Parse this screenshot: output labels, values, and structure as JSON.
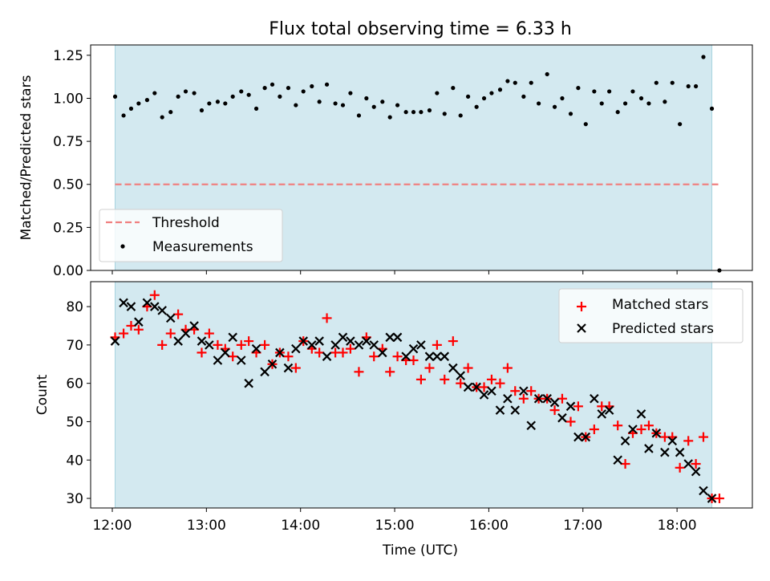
{
  "title": "Flux total observing time = 6.33 h",
  "colors": {
    "shade": "#d3e9f0",
    "shade_edge": "#a8d4e0",
    "threshold": "#f08080",
    "measurement": "#000000",
    "matched": "#ff0000",
    "predicted": "#000000"
  },
  "chart_data": [
    {
      "type": "scatter",
      "ylabel": "Matched/Predicted stars",
      "xlim": [
        11.77,
        18.8
      ],
      "ylim": [
        0,
        1.31
      ],
      "yticks": [
        "0.00",
        "0.25",
        "0.50",
        "0.75",
        "1.00",
        "1.25"
      ],
      "ytick_values": [
        0,
        0.25,
        0.5,
        0.75,
        1.0,
        1.25
      ],
      "shaded_range": [
        12.03,
        18.37
      ],
      "legend": {
        "position": "lower-left",
        "entries": [
          "Threshold",
          "Measurements"
        ]
      },
      "threshold": {
        "name": "Threshold",
        "value": 0.5,
        "x_range": [
          12.03,
          18.47
        ]
      },
      "series": [
        {
          "name": "Measurements",
          "x": [
            12.03,
            12.12,
            12.2,
            12.28,
            12.37,
            12.45,
            12.53,
            12.62,
            12.7,
            12.78,
            12.87,
            12.95,
            13.03,
            13.12,
            13.2,
            13.28,
            13.37,
            13.45,
            13.53,
            13.62,
            13.7,
            13.78,
            13.87,
            13.95,
            14.03,
            14.12,
            14.2,
            14.28,
            14.37,
            14.45,
            14.53,
            14.62,
            14.7,
            14.78,
            14.87,
            14.95,
            15.03,
            15.12,
            15.2,
            15.28,
            15.37,
            15.45,
            15.53,
            15.62,
            15.7,
            15.78,
            15.87,
            15.95,
            16.03,
            16.12,
            16.2,
            16.28,
            16.37,
            16.45,
            16.53,
            16.62,
            16.7,
            16.78,
            16.87,
            16.95,
            17.03,
            17.12,
            17.2,
            17.28,
            17.37,
            17.45,
            17.53,
            17.62,
            17.7,
            17.78,
            17.87,
            17.95,
            18.03,
            18.12,
            18.2,
            18.28,
            18.37,
            18.45
          ],
          "y": [
            1.01,
            0.9,
            0.94,
            0.97,
            0.99,
            1.03,
            0.89,
            0.92,
            1.01,
            1.04,
            1.03,
            0.93,
            0.97,
            0.98,
            0.97,
            1.01,
            1.04,
            1.02,
            0.94,
            1.06,
            1.08,
            1.01,
            1.06,
            0.96,
            1.04,
            1.07,
            0.98,
            1.08,
            0.97,
            0.96,
            1.03,
            0.9,
            1.0,
            0.95,
            0.98,
            0.89,
            0.96,
            0.92,
            0.92,
            0.92,
            0.93,
            1.03,
            0.91,
            1.06,
            0.9,
            1.01,
            0.95,
            1.0,
            1.03,
            1.05,
            1.1,
            1.09,
            1.01,
            1.09,
            0.97,
            1.14,
            0.95,
            1.0,
            0.91,
            1.06,
            0.85,
            1.04,
            0.97,
            1.04,
            0.92,
            0.97,
            1.04,
            1.0,
            0.97,
            1.09,
            0.98,
            1.09,
            0.85,
            1.07,
            1.07,
            1.24,
            0.94,
            0.0
          ]
        }
      ]
    },
    {
      "type": "scatter",
      "ylabel": "Count",
      "xlabel": "Time (UTC)",
      "xlim": [
        11.77,
        18.8
      ],
      "ylim": [
        27.5,
        86.5
      ],
      "yticks": [
        "30",
        "40",
        "50",
        "60",
        "70",
        "80"
      ],
      "ytick_values": [
        30,
        40,
        50,
        60,
        70,
        80
      ],
      "xticks": [
        "12:00",
        "13:00",
        "14:00",
        "15:00",
        "16:00",
        "17:00",
        "18:00"
      ],
      "xtick_values": [
        12,
        13,
        14,
        15,
        16,
        17,
        18
      ],
      "shaded_range": [
        12.03,
        18.37
      ],
      "legend": {
        "position": "top-right",
        "entries": [
          "Matched stars",
          "Predicted stars"
        ]
      },
      "series": [
        {
          "name": "Matched stars",
          "marker": "plus",
          "x": [
            12.03,
            12.12,
            12.2,
            12.28,
            12.37,
            12.45,
            12.53,
            12.62,
            12.7,
            12.78,
            12.87,
            12.95,
            13.03,
            13.12,
            13.2,
            13.28,
            13.37,
            13.45,
            13.53,
            13.62,
            13.7,
            13.78,
            13.87,
            13.95,
            14.03,
            14.12,
            14.2,
            14.28,
            14.37,
            14.45,
            14.53,
            14.62,
            14.7,
            14.78,
            14.87,
            14.95,
            15.03,
            15.12,
            15.2,
            15.28,
            15.37,
            15.45,
            15.53,
            15.62,
            15.7,
            15.78,
            15.87,
            15.95,
            16.03,
            16.12,
            16.2,
            16.28,
            16.37,
            16.45,
            16.53,
            16.62,
            16.7,
            16.78,
            16.87,
            16.95,
            17.03,
            17.12,
            17.2,
            17.28,
            17.37,
            17.45,
            17.53,
            17.62,
            17.7,
            17.78,
            17.87,
            17.95,
            18.03,
            18.12,
            18.2,
            18.28,
            18.37,
            18.45
          ],
          "y": [
            72,
            73,
            75,
            74,
            80,
            83,
            70,
            73,
            78,
            74,
            74,
            68,
            73,
            70,
            69,
            67,
            70,
            71,
            68,
            70,
            65,
            68,
            67,
            64,
            71,
            69,
            68,
            77,
            68,
            68,
            69,
            63,
            72,
            67,
            69,
            63,
            67,
            66,
            66,
            61,
            64,
            70,
            61,
            71,
            60,
            64,
            59,
            59,
            61,
            60,
            64,
            58,
            56,
            58,
            56,
            56,
            53,
            56,
            50,
            54,
            46,
            48,
            54,
            54,
            49,
            39,
            47,
            48,
            49,
            47,
            46,
            46,
            38,
            45,
            39,
            46,
            30,
            30
          ]
        },
        {
          "name": "Predicted stars",
          "marker": "x",
          "x": [
            12.03,
            12.12,
            12.2,
            12.28,
            12.37,
            12.45,
            12.53,
            12.62,
            12.7,
            12.78,
            12.87,
            12.95,
            13.03,
            13.12,
            13.2,
            13.28,
            13.37,
            13.45,
            13.53,
            13.62,
            13.7,
            13.78,
            13.87,
            13.95,
            14.03,
            14.12,
            14.2,
            14.28,
            14.37,
            14.45,
            14.53,
            14.62,
            14.7,
            14.78,
            14.87,
            14.95,
            15.03,
            15.12,
            15.2,
            15.28,
            15.37,
            15.45,
            15.53,
            15.62,
            15.7,
            15.78,
            15.87,
            15.95,
            16.03,
            16.12,
            16.2,
            16.28,
            16.37,
            16.45,
            16.53,
            16.62,
            16.7,
            16.78,
            16.87,
            16.95,
            17.03,
            17.12,
            17.2,
            17.28,
            17.37,
            17.45,
            17.53,
            17.62,
            17.7,
            17.78,
            17.87,
            17.95,
            18.03,
            18.12,
            18.2,
            18.28,
            18.37
          ],
          "y": [
            71,
            81,
            80,
            76,
            81,
            80,
            79,
            77,
            71,
            73,
            75,
            71,
            70,
            66,
            68,
            72,
            66,
            60,
            69,
            63,
            65,
            68,
            64,
            69,
            71,
            70,
            71,
            67,
            70,
            72,
            71,
            70,
            71,
            70,
            68,
            72,
            72,
            67,
            69,
            70,
            67,
            67,
            67,
            64,
            62,
            59,
            59,
            57,
            58,
            53,
            56,
            53,
            58,
            49,
            56,
            56,
            55,
            51,
            54,
            46,
            46,
            56,
            52,
            53,
            40,
            45,
            48,
            52,
            43,
            47,
            42,
            45,
            42,
            39,
            37,
            32,
            30
          ]
        }
      ]
    }
  ]
}
